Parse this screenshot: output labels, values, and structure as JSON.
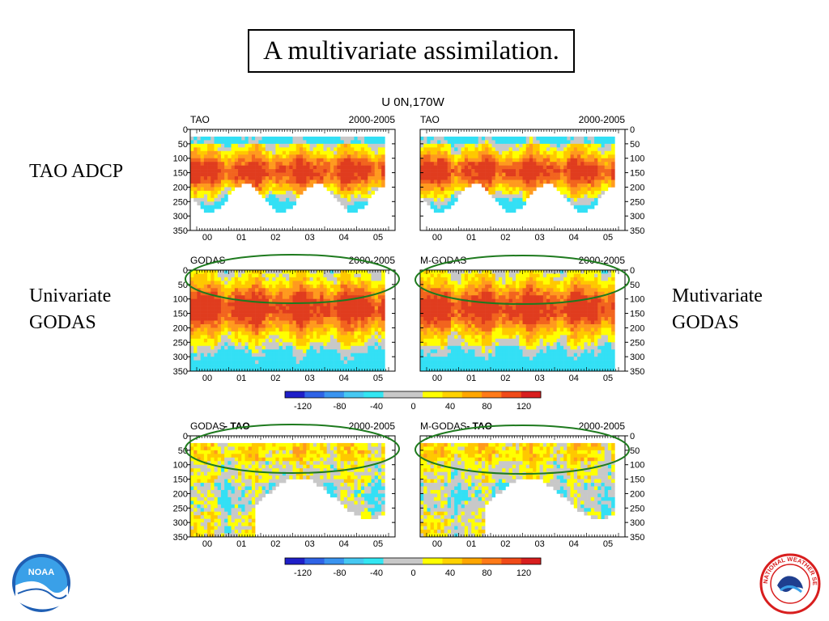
{
  "slide": {
    "title": "A multivariate assimilation.",
    "label_tao": "TAO ADCP",
    "label_univariate": [
      "Univariate",
      "GODAS"
    ],
    "label_multivariate": [
      "Mutivariate",
      "GODAS"
    ]
  },
  "figure": {
    "title": "U  0N,170W",
    "period": "2000-2005",
    "depth_ticks": [
      0,
      50,
      100,
      150,
      200,
      250,
      300,
      350
    ],
    "year_ticks": [
      "00",
      "01",
      "02",
      "03",
      "04",
      "05"
    ]
  },
  "chart_data": [
    {
      "type": "heatmap",
      "title": "TAO",
      "period": "2000-2005",
      "ylabel": "",
      "ylim": [
        350,
        0
      ],
      "xlabel": "",
      "x": [
        "00",
        "01",
        "02",
        "03",
        "04",
        "05"
      ],
      "row": 0,
      "col": 0
    },
    {
      "type": "heatmap",
      "title": "TAO",
      "period": "2000-2005",
      "ylabel": "",
      "ylim": [
        350,
        0
      ],
      "xlabel": "",
      "x": [
        "00",
        "01",
        "02",
        "03",
        "04",
        "05"
      ],
      "row": 0,
      "col": 1
    },
    {
      "type": "heatmap",
      "title": "GODAS",
      "period": "2000-2005",
      "ylabel": "",
      "ylim": [
        350,
        0
      ],
      "xlabel": "",
      "x": [
        "00",
        "01",
        "02",
        "03",
        "04",
        "05"
      ],
      "row": 1,
      "col": 0
    },
    {
      "type": "heatmap",
      "title": "M-GODAS",
      "period": "2000-2005",
      "ylabel": "",
      "ylim": [
        350,
        0
      ],
      "xlabel": "",
      "x": [
        "00",
        "01",
        "02",
        "03",
        "04",
        "05"
      ],
      "row": 1,
      "col": 1
    },
    {
      "type": "heatmap",
      "title": "GODAS",
      "title_suffix": "- TAO",
      "period": "2000-2005",
      "ylabel": "",
      "ylim": [
        350,
        0
      ],
      "xlabel": "",
      "x": [
        "00",
        "01",
        "02",
        "03",
        "04",
        "05"
      ],
      "row": 2,
      "col": 0
    },
    {
      "type": "heatmap",
      "title": "M-GODAS",
      "title_suffix": "- TAO",
      "period": "2000-2005",
      "ylabel": "",
      "ylim": [
        350,
        0
      ],
      "xlabel": "",
      "x": [
        "00",
        "01",
        "02",
        "03",
        "04",
        "05"
      ],
      "row": 2,
      "col": 1
    }
  ],
  "colorbar": {
    "labels": [
      "-120",
      "-80",
      "-40",
      "0",
      "40",
      "80",
      "120"
    ],
    "colors": [
      "#1f1fc8",
      "#2f63e6",
      "#3a94f0",
      "#46c8f2",
      "#33e6f2",
      "#c8c8c8",
      "#c8c8c8",
      "#ffff00",
      "#ffd200",
      "#ffa600",
      "#ff7a18",
      "#f04a18",
      "#d81e1e"
    ]
  },
  "palette": {
    "cyan": "#33e0f5",
    "yellow": "#ffff00",
    "gold": "#ffc800",
    "orange": "#ff9a1e",
    "red_orange": "#f2641e",
    "red": "#e03c1e",
    "gray": "#c8c8c8",
    "highlight": "#1e7a1e"
  },
  "logos": {
    "left": "noaa-logo",
    "right": "nws-logo",
    "noaa_text": "NOAA",
    "nws_text": "NATIONAL WEATHER SERVICE"
  }
}
